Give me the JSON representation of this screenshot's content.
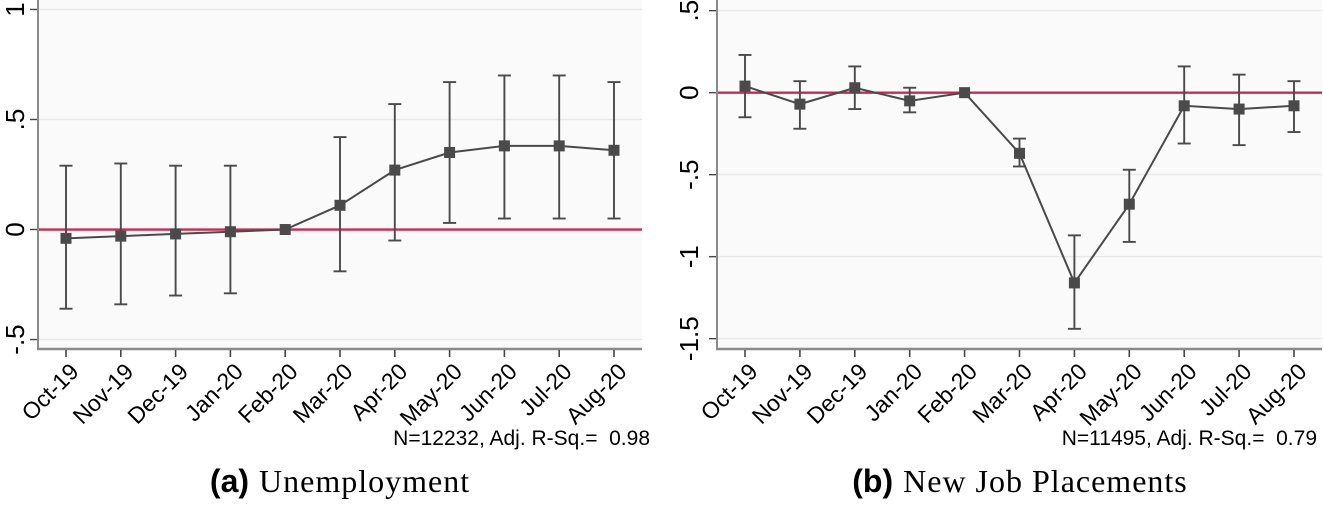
{
  "colors": {
    "series": "#4a4a4a",
    "zero_line": "#c52b55",
    "grid": "#e8e8e8",
    "plot_bg": "#fafafa",
    "axis": "#8a8a8a",
    "tick": "#474747",
    "text": "#000000"
  },
  "chart_data": [
    {
      "type": "line",
      "caption_label": "(a)",
      "caption_text": "Unemployment",
      "note": "N=12232, Adj. R-Sq.=  0.98",
      "categories": [
        "Oct-19",
        "Nov-19",
        "Dec-19",
        "Jan-20",
        "Feb-20",
        "Mar-20",
        "Apr-20",
        "May-20",
        "Jun-20",
        "Jul-20",
        "Aug-20"
      ],
      "series": [
        {
          "name": "coefficient",
          "values": [
            -0.04,
            -0.03,
            -0.02,
            -0.01,
            0,
            0.11,
            0.27,
            0.35,
            0.38,
            0.38,
            0.36
          ],
          "ci_low": [
            -0.36,
            -0.34,
            -0.3,
            -0.29,
            null,
            -0.19,
            -0.05,
            0.03,
            0.05,
            0.05,
            0.05
          ],
          "ci_high": [
            0.29,
            0.3,
            0.29,
            0.29,
            null,
            0.42,
            0.57,
            0.67,
            0.7,
            0.7,
            0.67
          ]
        }
      ],
      "yticks": [
        1,
        0.5,
        0,
        -0.5
      ],
      "ytick_labels": [
        "1",
        ".5",
        "0",
        "-.5"
      ],
      "ylim": [
        -0.543,
        1.043
      ],
      "zero_line": 0,
      "grid": true,
      "legend": "none"
    },
    {
      "type": "line",
      "caption_label": "(b)",
      "caption_text": "New Job Placements",
      "note": "N=11495, Adj. R-Sq.=  0.79",
      "categories": [
        "Oct-19",
        "Nov-19",
        "Dec-19",
        "Jan-20",
        "Feb-20",
        "Mar-20",
        "Apr-20",
        "May-20",
        "Jun-20",
        "Jul-20",
        "Aug-20"
      ],
      "series": [
        {
          "name": "coefficient",
          "values": [
            0.04,
            -0.07,
            0.03,
            -0.05,
            0,
            -0.37,
            -1.16,
            -0.68,
            -0.08,
            -0.1,
            -0.08
          ],
          "ci_low": [
            -0.15,
            -0.22,
            -0.1,
            -0.12,
            null,
            -0.45,
            -1.44,
            -0.91,
            -0.31,
            -0.32,
            -0.24
          ],
          "ci_high": [
            0.23,
            0.07,
            0.16,
            0.03,
            null,
            -0.28,
            -0.87,
            -0.47,
            0.16,
            0.11,
            0.07
          ]
        }
      ],
      "yticks": [
        0.5,
        0,
        -0.5,
        -1,
        -1.5
      ],
      "ytick_labels": [
        ".5",
        "0",
        "-.5",
        "-1",
        "-1.5"
      ],
      "ylim": [
        -1.563,
        0.565
      ],
      "zero_line": 0,
      "grid": true,
      "legend": "none"
    }
  ]
}
